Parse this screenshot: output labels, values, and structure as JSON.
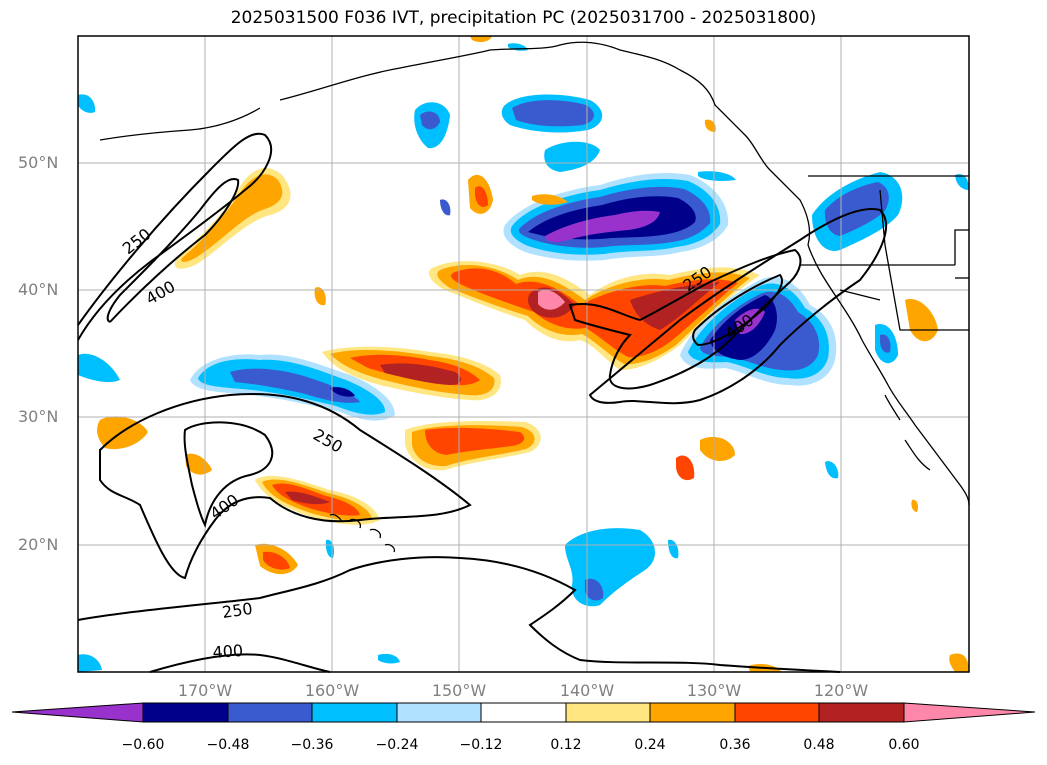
{
  "title": "2025031500 F036 IVT, precipitation PC (2025031700 - 2025031800)",
  "map": {
    "lat_labels": [
      "50°N",
      "40°N",
      "30°N",
      "20°N"
    ],
    "lon_labels": [
      "170°W",
      "160°W",
      "150°W",
      "140°W",
      "130°W",
      "120°W"
    ],
    "contour_labels": [
      "250",
      "400",
      "250",
      "400",
      "250",
      "400",
      "250",
      "400",
      "250",
      "600",
      "400"
    ],
    "colorbar": {
      "ticks": [
        "−0.60",
        "−0.48",
        "−0.36",
        "−0.24",
        "−0.12",
        "0.12",
        "0.24",
        "0.36",
        "0.48",
        "0.60"
      ],
      "colors": [
        "#9932cc",
        "#00008b",
        "#3a5bd0",
        "#00bfff",
        "#b0e2ff",
        "#ffffff",
        "#ffe680",
        "#ffa500",
        "#ff4500",
        "#b22222",
        "#ff88aa"
      ]
    }
  }
}
